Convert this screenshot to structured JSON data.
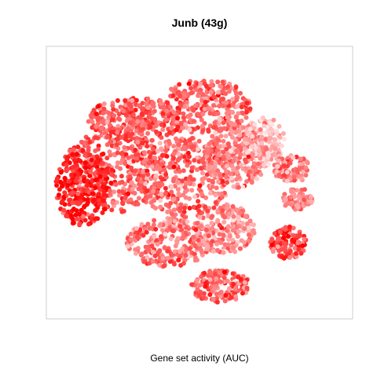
{
  "chart_data": {
    "type": "scatter",
    "title": "Junb (43g)",
    "caption": "Gene set activity (AUC)",
    "xlabel": "",
    "ylabel": "",
    "xlim": [
      0,
      1
    ],
    "ylim": [
      0,
      1
    ],
    "grid": false,
    "axes_visible": false,
    "frame": true,
    "color_scale": {
      "low": "#ffe3e3",
      "high": "#ff0000"
    },
    "clusters": [
      {
        "name": "",
        "cx": 0.3,
        "cy": 0.73,
        "rx": 0.17,
        "ry": 0.08,
        "n": 320,
        "act": 0.62
      },
      {
        "name": "",
        "cx": 0.22,
        "cy": 0.54,
        "rx": 0.17,
        "ry": 0.15,
        "n": 380,
        "act": 0.6
      },
      {
        "name": "",
        "cx": 0.12,
        "cy": 0.48,
        "rx": 0.09,
        "ry": 0.14,
        "n": 280,
        "act": 0.88
      },
      {
        "name": "",
        "cx": 0.45,
        "cy": 0.52,
        "rx": 0.15,
        "ry": 0.15,
        "n": 360,
        "act": 0.55
      },
      {
        "name": "",
        "cx": 0.52,
        "cy": 0.78,
        "rx": 0.15,
        "ry": 0.1,
        "n": 320,
        "act": 0.55
      },
      {
        "name": "",
        "cx": 0.62,
        "cy": 0.6,
        "rx": 0.1,
        "ry": 0.12,
        "n": 260,
        "act": 0.42
      },
      {
        "name": "",
        "cx": 0.4,
        "cy": 0.28,
        "rx": 0.14,
        "ry": 0.09,
        "n": 260,
        "act": 0.5
      },
      {
        "name": "",
        "cx": 0.58,
        "cy": 0.33,
        "rx": 0.1,
        "ry": 0.09,
        "n": 200,
        "act": 0.38
      },
      {
        "name": "",
        "cx": 0.71,
        "cy": 0.65,
        "rx": 0.07,
        "ry": 0.09,
        "n": 150,
        "act": 0.18
      },
      {
        "name": "",
        "cx": 0.8,
        "cy": 0.55,
        "rx": 0.06,
        "ry": 0.05,
        "n": 110,
        "act": 0.45
      },
      {
        "name": "",
        "cx": 0.82,
        "cy": 0.44,
        "rx": 0.05,
        "ry": 0.04,
        "n": 80,
        "act": 0.42
      },
      {
        "name": "",
        "cx": 0.79,
        "cy": 0.28,
        "rx": 0.06,
        "ry": 0.06,
        "n": 110,
        "act": 0.72
      },
      {
        "name": "",
        "cx": 0.57,
        "cy": 0.12,
        "rx": 0.1,
        "ry": 0.06,
        "n": 160,
        "act": 0.55
      }
    ]
  }
}
